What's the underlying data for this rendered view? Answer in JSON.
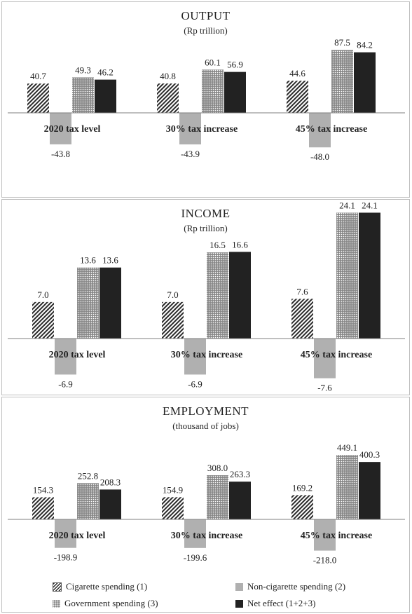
{
  "chart_data": [
    {
      "type": "bar",
      "title": "OUTPUT",
      "subtitle": "(Rp trillion)",
      "categories": [
        "2020 tax level",
        "30% tax increase",
        "45% tax increase"
      ],
      "series": [
        {
          "name": "Cigarette spending (1)",
          "values": [
            40.7,
            40.8,
            44.6
          ]
        },
        {
          "name": "Non-cigarette spending (2)",
          "values": [
            -43.8,
            -43.9,
            -48.0
          ]
        },
        {
          "name": "Government spending (3)",
          "values": [
            49.3,
            60.1,
            87.5
          ]
        },
        {
          "name": "Net effect (1+2+3)",
          "values": [
            46.2,
            56.9,
            84.2
          ]
        }
      ],
      "value_labels": [
        [
          "40.7",
          "40.8",
          "44.6"
        ],
        [
          "-43.8",
          "-43.9",
          "-48.0"
        ],
        [
          "49.3",
          "60.1",
          "87.5"
        ],
        [
          "46.2",
          "56.9",
          "84.2"
        ]
      ],
      "ylim": [
        -55,
        100
      ],
      "grid": false
    },
    {
      "type": "bar",
      "title": "INCOME",
      "subtitle": "(Rp trillion)",
      "categories": [
        "2020 tax level",
        "30% tax increase",
        "45% tax increase"
      ],
      "series": [
        {
          "name": "Cigarette spending (1)",
          "values": [
            7.0,
            7.0,
            7.6
          ]
        },
        {
          "name": "Non-cigarette spending (2)",
          "values": [
            -6.9,
            -6.9,
            -7.6
          ]
        },
        {
          "name": "Government spending (3)",
          "values": [
            13.6,
            16.5,
            24.1
          ]
        },
        {
          "name": "Net effect (1+2+3)",
          "values": [
            13.6,
            16.6,
            24.1
          ]
        }
      ],
      "value_labels": [
        [
          "7.0",
          "7.0",
          "7.6"
        ],
        [
          "-6.9",
          "-6.9",
          "-7.6"
        ],
        [
          "13.6",
          "16.5",
          "24.1"
        ],
        [
          "13.6",
          "16.6",
          "24.1"
        ]
      ],
      "ylim": [
        -9,
        28
      ],
      "grid": false
    },
    {
      "type": "bar",
      "title": "EMPLOYMENT",
      "subtitle": "(thousand of jobs)",
      "categories": [
        "2020 tax level",
        "30% tax increase",
        "45% tax increase"
      ],
      "series": [
        {
          "name": "Cigarette spending (1)",
          "values": [
            154.3,
            154.9,
            169.2
          ]
        },
        {
          "name": "Non-cigarette spending (2)",
          "values": [
            -198.9,
            -199.6,
            -218.0
          ]
        },
        {
          "name": "Government spending (3)",
          "values": [
            252.8,
            308.0,
            449.1
          ]
        },
        {
          "name": "Net effect (1+2+3)",
          "values": [
            208.3,
            263.3,
            400.3
          ]
        }
      ],
      "value_labels": [
        [
          "154.3",
          "154.9",
          "169.2"
        ],
        [
          "-198.9",
          "-199.6",
          "-218.0"
        ],
        [
          "252.8",
          "308.0",
          "449.1"
        ],
        [
          "208.3",
          "263.3",
          "400.3"
        ]
      ],
      "ylim": [
        -250,
        520
      ],
      "grid": false
    }
  ],
  "legend": {
    "placement": "bottom",
    "items": [
      {
        "label": "Cigarette spending (1)",
        "pattern": "diagonal-hatch"
      },
      {
        "label": "Non-cigarette spending (2)",
        "pattern": "solid-light-gray"
      },
      {
        "label": "Government spending (3)",
        "pattern": "dotted-gray"
      },
      {
        "label": "Net effect (1+2+3)",
        "pattern": "solid-black"
      }
    ]
  },
  "colors": {
    "non_cigarette": "#b0b0b0",
    "government": "#888888",
    "net_effect": "#222222",
    "axis": "#7f7f7f"
  }
}
